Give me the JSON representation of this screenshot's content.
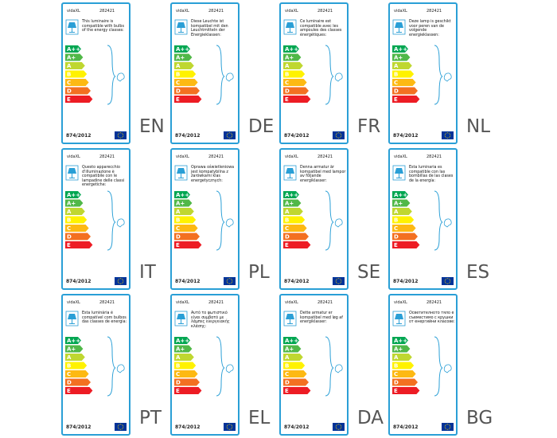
{
  "brand": "vidaXL",
  "model": "282421",
  "regulation": "874/2012",
  "classes": [
    "A++",
    "A+",
    "A",
    "B",
    "C",
    "D",
    "E"
  ],
  "labels": [
    {
      "lang": "EN",
      "text": "This luminaire is compatible with bulbs of the energy classes:"
    },
    {
      "lang": "DE",
      "text": "Diese Leuchte ist kompatibel mit den Leuchtmitteln der Energieklassen:"
    },
    {
      "lang": "FR",
      "text": "Ce luminaire est compatible avec les ampoules des classes énergétiques:"
    },
    {
      "lang": "NL",
      "text": "Deze lamp is geschikt voor peren van de volgende energieklassen:"
    },
    {
      "lang": "IT",
      "text": "Questo apparecchio d'illuminazione è compatibile con le lampadine delle classi energetiche:"
    },
    {
      "lang": "PL",
      "text": "Oprawa oświetleniowa jest kompatybilna z żarówkami klas energetycznych:"
    },
    {
      "lang": "SE",
      "text": "Denna armatur är kompatibel med lampor av följande energiklasser:"
    },
    {
      "lang": "ES",
      "text": "Esta luminaria es compatible con las bombillas de las clases de la energía:"
    },
    {
      "lang": "PT",
      "text": "Esta luminária é compatível com bulbos das classes de energia:"
    },
    {
      "lang": "EL",
      "text": "Αυτό το φωτιστικό είναι συμβατό με λάμπες ενεργειακής κλάσης:"
    },
    {
      "lang": "DA",
      "text": "Dette armatur er kompatibel med løg af energiklasser:"
    },
    {
      "lang": "BG",
      "text": "Осветителното тяло е съвместимо с крушки от енергийни класове:"
    }
  ]
}
